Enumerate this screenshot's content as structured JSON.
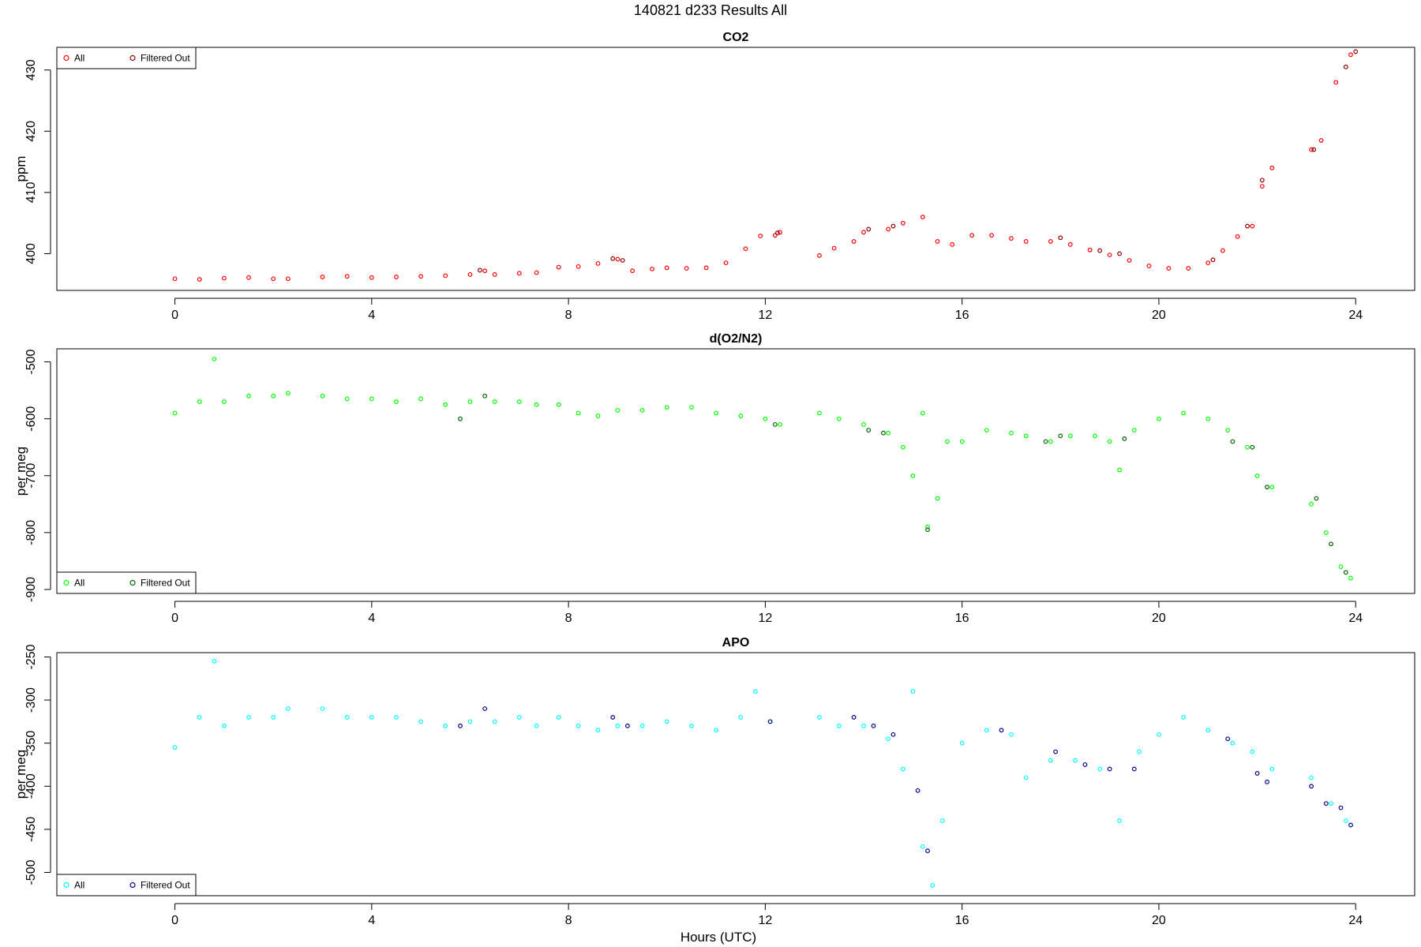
{
  "figure": {
    "title": "140821   d233   Results All",
    "xlabel": "Hours (UTC)"
  },
  "chart_data": [
    {
      "type": "scatter",
      "title": "CO2",
      "ylabel": "ppm",
      "xlabel": "",
      "xlim": [
        -2.4,
        25.2
      ],
      "ylim": [
        394,
        433.7
      ],
      "x_ticks": [
        0,
        4,
        8,
        12,
        16,
        20,
        24
      ],
      "y_ticks": [
        400,
        410,
        420,
        430
      ],
      "grid": false,
      "legend_position": "top-left",
      "series": [
        {
          "name": "All",
          "color": "#ff0000",
          "points": [
            [
              0,
              395.9
            ],
            [
              0.5,
              395.8
            ],
            [
              1,
              396
            ],
            [
              1.5,
              396.1
            ],
            [
              2,
              395.9
            ],
            [
              2.3,
              395.9
            ],
            [
              3,
              396.2
            ],
            [
              3.5,
              396.3
            ],
            [
              4,
              396.1
            ],
            [
              4.5,
              396.2
            ],
            [
              5,
              396.3
            ],
            [
              5.5,
              396.4
            ],
            [
              6,
              396.6
            ],
            [
              6.3,
              397.2
            ],
            [
              6.5,
              396.6
            ],
            [
              7,
              396.8
            ],
            [
              7.35,
              396.9
            ],
            [
              7.8,
              397.8
            ],
            [
              8.2,
              397.9
            ],
            [
              8.6,
              398.4
            ],
            [
              9,
              399.1
            ],
            [
              9.3,
              397.2
            ],
            [
              9.7,
              397.5
            ],
            [
              10,
              397.7
            ],
            [
              10.4,
              397.6
            ],
            [
              10.8,
              397.7
            ],
            [
              11.2,
              398.5
            ],
            [
              11.6,
              400.8
            ],
            [
              11.9,
              402.9
            ],
            [
              12.2,
              403
            ],
            [
              12.3,
              403.5
            ],
            [
              13.1,
              399.7
            ],
            [
              13.4,
              400.9
            ],
            [
              13.8,
              402
            ],
            [
              14,
              403.5
            ],
            [
              14.5,
              404
            ],
            [
              14.8,
              405
            ],
            [
              15.2,
              406
            ],
            [
              15.5,
              402
            ],
            [
              15.8,
              401.5
            ],
            [
              16.2,
              403
            ],
            [
              16.6,
              403
            ],
            [
              17,
              402.5
            ],
            [
              17.3,
              402
            ],
            [
              17.8,
              402
            ],
            [
              18.2,
              401.5
            ],
            [
              18.6,
              400.6
            ],
            [
              19,
              399.8
            ],
            [
              19.4,
              398.9
            ],
            [
              19.8,
              398
            ],
            [
              20.2,
              397.6
            ],
            [
              20.6,
              397.6
            ],
            [
              21,
              398.5
            ],
            [
              21.3,
              400.5
            ],
            [
              21.6,
              402.8
            ],
            [
              21.9,
              404.5
            ],
            [
              22.1,
              411
            ],
            [
              22.3,
              414
            ],
            [
              23.1,
              417
            ],
            [
              23.3,
              418.5
            ],
            [
              23.6,
              428
            ],
            [
              23.9,
              432.5
            ]
          ]
        },
        {
          "name": "Filtered Out",
          "color": "#8b0000",
          "points": [
            [
              6.2,
              397.3
            ],
            [
              8.9,
              399.2
            ],
            [
              9.1,
              398.9
            ],
            [
              12.25,
              403.4
            ],
            [
              14.1,
              404
            ],
            [
              14.6,
              404.5
            ],
            [
              18,
              402.6
            ],
            [
              18.8,
              400.5
            ],
            [
              19.2,
              400
            ],
            [
              21.1,
              399
            ],
            [
              21.8,
              404.5
            ],
            [
              22.1,
              412
            ],
            [
              23.15,
              417
            ],
            [
              23.8,
              430.5
            ],
            [
              24,
              433
            ]
          ]
        }
      ]
    },
    {
      "type": "scatter",
      "title": "d(O2/N2)",
      "ylabel": "per meg",
      "xlabel": "",
      "xlim": [
        -2.4,
        25.2
      ],
      "ylim": [
        -907,
        -477
      ],
      "x_ticks": [
        0,
        4,
        8,
        12,
        16,
        20,
        24
      ],
      "y_ticks": [
        -500,
        -600,
        -700,
        -800,
        -900
      ],
      "grid": false,
      "legend_position": "bottom-left",
      "series": [
        {
          "name": "All",
          "color": "#00ff00",
          "points": [
            [
              0,
              -590
            ],
            [
              0.5,
              -570
            ],
            [
              0.8,
              -495
            ],
            [
              1,
              -570
            ],
            [
              1.5,
              -560
            ],
            [
              2,
              -560
            ],
            [
              2.3,
              -555
            ],
            [
              3,
              -560
            ],
            [
              3.5,
              -565
            ],
            [
              4,
              -565
            ],
            [
              4.5,
              -570
            ],
            [
              5,
              -565
            ],
            [
              5.5,
              -575
            ],
            [
              6,
              -570
            ],
            [
              6.5,
              -570
            ],
            [
              7,
              -570
            ],
            [
              7.35,
              -575
            ],
            [
              7.8,
              -575
            ],
            [
              8.2,
              -590
            ],
            [
              8.6,
              -595
            ],
            [
              9,
              -585
            ],
            [
              9.5,
              -585
            ],
            [
              10,
              -580
            ],
            [
              10.5,
              -580
            ],
            [
              11,
              -590
            ],
            [
              11.5,
              -595
            ],
            [
              12,
              -600
            ],
            [
              12.3,
              -610
            ],
            [
              13.1,
              -590
            ],
            [
              13.5,
              -600
            ],
            [
              14,
              -610
            ],
            [
              14.5,
              -625
            ],
            [
              14.8,
              -650
            ],
            [
              15,
              -700
            ],
            [
              15.2,
              -590
            ],
            [
              15.3,
              -790
            ],
            [
              15.5,
              -740
            ],
            [
              15.7,
              -640
            ],
            [
              16,
              -640
            ],
            [
              16.5,
              -620
            ],
            [
              17,
              -625
            ],
            [
              17.3,
              -630
            ],
            [
              17.8,
              -640
            ],
            [
              18.2,
              -630
            ],
            [
              18.7,
              -630
            ],
            [
              19,
              -640
            ],
            [
              19.2,
              -690
            ],
            [
              19.5,
              -620
            ],
            [
              20,
              -600
            ],
            [
              20.5,
              -590
            ],
            [
              21,
              -600
            ],
            [
              21.4,
              -620
            ],
            [
              21.8,
              -650
            ],
            [
              22,
              -700
            ],
            [
              22.3,
              -720
            ],
            [
              23.1,
              -750
            ],
            [
              23.4,
              -800
            ],
            [
              23.7,
              -860
            ],
            [
              23.9,
              -880
            ]
          ]
        },
        {
          "name": "Filtered Out",
          "color": "#006400",
          "points": [
            [
              5.8,
              -600
            ],
            [
              6.3,
              -560
            ],
            [
              12.2,
              -610
            ],
            [
              14.1,
              -620
            ],
            [
              14.4,
              -625
            ],
            [
              15.3,
              -795
            ],
            [
              17.7,
              -640
            ],
            [
              18,
              -630
            ],
            [
              19.3,
              -635
            ],
            [
              21.5,
              -640
            ],
            [
              21.9,
              -650
            ],
            [
              22.2,
              -720
            ],
            [
              23.2,
              -740
            ],
            [
              23.5,
              -820
            ],
            [
              23.8,
              -870
            ]
          ]
        }
      ]
    },
    {
      "type": "scatter",
      "title": "APO",
      "ylabel": "per meg",
      "xlabel": "Hours (UTC)",
      "xlim": [
        -2.4,
        25.2
      ],
      "ylim": [
        -527,
        -245
      ],
      "x_ticks": [
        0,
        4,
        8,
        12,
        16,
        20,
        24
      ],
      "y_ticks": [
        -250,
        -300,
        -350,
        -400,
        -450,
        -500
      ],
      "grid": false,
      "legend_position": "bottom-left",
      "series": [
        {
          "name": "All",
          "color": "#00ffff",
          "points": [
            [
              0,
              -355
            ],
            [
              0.5,
              -320
            ],
            [
              0.8,
              -255
            ],
            [
              1,
              -330
            ],
            [
              1.5,
              -320
            ],
            [
              2,
              -320
            ],
            [
              2.3,
              -310
            ],
            [
              3,
              -310
            ],
            [
              3.5,
              -320
            ],
            [
              4,
              -320
            ],
            [
              4.5,
              -320
            ],
            [
              5,
              -325
            ],
            [
              5.5,
              -330
            ],
            [
              6,
              -325
            ],
            [
              6.5,
              -325
            ],
            [
              7,
              -320
            ],
            [
              7.35,
              -330
            ],
            [
              7.8,
              -320
            ],
            [
              8.2,
              -330
            ],
            [
              8.6,
              -335
            ],
            [
              9,
              -330
            ],
            [
              9.5,
              -330
            ],
            [
              10,
              -325
            ],
            [
              10.5,
              -330
            ],
            [
              11,
              -335
            ],
            [
              11.5,
              -320
            ],
            [
              11.8,
              -290
            ],
            [
              12.1,
              -325
            ],
            [
              13.1,
              -320
            ],
            [
              13.5,
              -330
            ],
            [
              14,
              -330
            ],
            [
              14.5,
              -345
            ],
            [
              14.8,
              -380
            ],
            [
              15,
              -290
            ],
            [
              15.2,
              -470
            ],
            [
              15.4,
              -515
            ],
            [
              15.6,
              -440
            ],
            [
              16,
              -350
            ],
            [
              16.5,
              -335
            ],
            [
              17,
              -340
            ],
            [
              17.3,
              -390
            ],
            [
              17.8,
              -370
            ],
            [
              18.3,
              -370
            ],
            [
              18.8,
              -380
            ],
            [
              19.2,
              -440
            ],
            [
              19.6,
              -360
            ],
            [
              20,
              -340
            ],
            [
              20.5,
              -320
            ],
            [
              21,
              -335
            ],
            [
              21.5,
              -350
            ],
            [
              21.9,
              -360
            ],
            [
              22.3,
              -380
            ],
            [
              23.1,
              -390
            ],
            [
              23.5,
              -420
            ],
            [
              23.8,
              -440
            ]
          ]
        },
        {
          "name": "Filtered Out",
          "color": "#00008b",
          "points": [
            [
              5.8,
              -330
            ],
            [
              6.3,
              -310
            ],
            [
              8.9,
              -320
            ],
            [
              9.2,
              -330
            ],
            [
              12.1,
              -325
            ],
            [
              13.8,
              -320
            ],
            [
              14.2,
              -330
            ],
            [
              14.6,
              -340
            ],
            [
              15.1,
              -405
            ],
            [
              15.3,
              -475
            ],
            [
              16.8,
              -335
            ],
            [
              17.9,
              -360
            ],
            [
              18.5,
              -375
            ],
            [
              19,
              -380
            ],
            [
              19.5,
              -380
            ],
            [
              21.4,
              -345
            ],
            [
              22,
              -385
            ],
            [
              22.2,
              -395
            ],
            [
              23.1,
              -400
            ],
            [
              23.4,
              -420
            ],
            [
              23.7,
              -425
            ],
            [
              23.9,
              -445
            ]
          ]
        }
      ]
    }
  ]
}
